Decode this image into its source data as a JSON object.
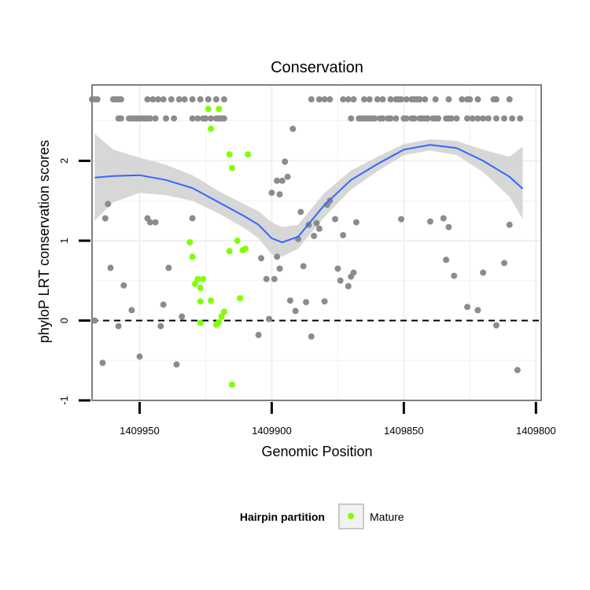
{
  "chart_data": {
    "type": "scatter",
    "title": "Conservation",
    "xlabel": "Genomic Position",
    "ylabel": "phyloP LRT conservation scores",
    "x_reversed": true,
    "xlim": [
      1409968,
      1409798
    ],
    "ylim": [
      -1,
      2.95
    ],
    "x_ticks": [
      1409950,
      1409900,
      1409850,
      1409800
    ],
    "x_tick_labels": [
      "1409950",
      "1409900",
      "1409850",
      "1409800"
    ],
    "y_ticks": [
      -1,
      0,
      1,
      2
    ],
    "y_tick_labels": [
      "-1",
      "0",
      "1",
      "2"
    ],
    "grid": true,
    "reference_line": {
      "y": 0,
      "style": "dashed"
    },
    "legend": {
      "title": "Hairpin partition",
      "position": "bottom",
      "entries": [
        "Mature"
      ]
    },
    "colors": {
      "other": "#8c8c8c",
      "mature": "#7fff00",
      "smooth": "#3366ff",
      "band": "#d3d3d3",
      "panel": "#ffffff",
      "grid": "#f0f0f0"
    },
    "series": [
      {
        "name": "",
        "color": "#8c8c8c",
        "points": [
          [
            1409967,
            0
          ],
          [
            1409964,
            -0.53
          ],
          [
            1409963,
            1.28
          ],
          [
            1409962,
            1.46
          ],
          [
            1409961,
            0.66
          ],
          [
            1409958,
            -0.07
          ],
          [
            1409956,
            0.44
          ],
          [
            1409953,
            0.13
          ],
          [
            1409950,
            -0.45
          ],
          [
            1409947,
            1.28
          ],
          [
            1409946,
            1.23
          ],
          [
            1409944,
            1.23
          ],
          [
            1409942,
            -0.07
          ],
          [
            1409941,
            0.2
          ],
          [
            1409939,
            0.66
          ],
          [
            1409936,
            -0.55
          ],
          [
            1409934,
            0.05
          ],
          [
            1409930,
            1.28
          ],
          [
            1409900,
            1.6
          ],
          [
            1409898,
            1.75
          ],
          [
            1409897,
            1.58
          ],
          [
            1409896,
            1.75
          ],
          [
            1409895,
            1.99
          ],
          [
            1409894,
            1.8
          ],
          [
            1409892,
            2.4
          ],
          [
            1409890,
            1.02
          ],
          [
            1409889,
            1.36
          ],
          [
            1409888,
            0.68
          ],
          [
            1409887,
            0.23
          ],
          [
            1409886,
            1.2
          ],
          [
            1409885,
            -0.2
          ],
          [
            1409884,
            1.06
          ],
          [
            1409883,
            1.22
          ],
          [
            1409882,
            1.15
          ],
          [
            1409880,
            0.24
          ],
          [
            1409879,
            1.45
          ],
          [
            1409878,
            1.5
          ],
          [
            1409876,
            1.27
          ],
          [
            1409875,
            0.65
          ],
          [
            1409874,
            0.5
          ],
          [
            1409873,
            1.07
          ],
          [
            1409871,
            0.43
          ],
          [
            1409870,
            0.55
          ],
          [
            1409869,
            0.6
          ],
          [
            1409868,
            1.23
          ],
          [
            1409905,
            -0.18
          ],
          [
            1409904,
            0.78
          ],
          [
            1409902,
            0.52
          ],
          [
            1409901,
            0.02
          ],
          [
            1409899,
            0.52
          ],
          [
            1409898,
            0.8
          ],
          [
            1409897,
            0.65
          ],
          [
            1409893,
            0.25
          ],
          [
            1409891,
            0.12
          ],
          [
            1409851,
            1.27
          ],
          [
            1409840,
            1.24
          ],
          [
            1409835,
            1.28
          ],
          [
            1409834,
            0.76
          ],
          [
            1409833,
            1.17
          ],
          [
            1409831,
            0.56
          ],
          [
            1409826,
            0.17
          ],
          [
            1409822,
            0.13
          ],
          [
            1409820,
            0.6
          ],
          [
            1409815,
            -0.06
          ],
          [
            1409812,
            0.72
          ],
          [
            1409810,
            1.2
          ],
          [
            1409807,
            -0.62
          ],
          [
            1409968,
            2.77
          ],
          [
            1409967,
            2.77
          ],
          [
            1409966,
            2.77
          ],
          [
            1409960,
            2.77
          ],
          [
            1409959,
            2.77
          ],
          [
            1409958,
            2.77
          ],
          [
            1409957,
            2.77
          ],
          [
            1409947,
            2.77
          ],
          [
            1409945,
            2.77
          ],
          [
            1409943,
            2.77
          ],
          [
            1409941,
            2.77
          ],
          [
            1409938,
            2.77
          ],
          [
            1409935,
            2.77
          ],
          [
            1409933,
            2.77
          ],
          [
            1409930,
            2.77
          ],
          [
            1409927,
            2.77
          ],
          [
            1409924,
            2.77
          ],
          [
            1409921,
            2.77
          ],
          [
            1409918,
            2.77
          ],
          [
            1409954,
            2.53
          ],
          [
            1409953,
            2.53
          ],
          [
            1409952,
            2.53
          ],
          [
            1409951,
            2.53
          ],
          [
            1409950,
            2.53
          ],
          [
            1409949,
            2.53
          ],
          [
            1409948,
            2.53
          ],
          [
            1409947,
            2.53
          ],
          [
            1409946,
            2.53
          ],
          [
            1409944,
            2.53
          ],
          [
            1409940,
            2.53
          ],
          [
            1409937,
            2.53
          ],
          [
            1409930,
            2.53
          ],
          [
            1409928,
            2.53
          ],
          [
            1409926,
            2.53
          ],
          [
            1409925,
            2.53
          ],
          [
            1409923,
            2.53
          ],
          [
            1409921,
            2.53
          ],
          [
            1409920,
            2.53
          ],
          [
            1409919,
            2.53
          ],
          [
            1409918,
            2.53
          ],
          [
            1409958,
            2.53
          ],
          [
            1409957,
            2.53
          ],
          [
            1409885,
            2.77
          ],
          [
            1409882,
            2.77
          ],
          [
            1409880,
            2.77
          ],
          [
            1409878,
            2.77
          ],
          [
            1409873,
            2.77
          ],
          [
            1409871,
            2.77
          ],
          [
            1409869,
            2.77
          ],
          [
            1409865,
            2.77
          ],
          [
            1409863,
            2.77
          ],
          [
            1409860,
            2.77
          ],
          [
            1409858,
            2.77
          ],
          [
            1409855,
            2.77
          ],
          [
            1409853,
            2.77
          ],
          [
            1409852,
            2.77
          ],
          [
            1409851,
            2.77
          ],
          [
            1409849,
            2.77
          ],
          [
            1409847,
            2.77
          ],
          [
            1409846,
            2.77
          ],
          [
            1409845,
            2.77
          ],
          [
            1409844,
            2.77
          ],
          [
            1409842,
            2.77
          ],
          [
            1409838,
            2.77
          ],
          [
            1409833,
            2.77
          ],
          [
            1409828,
            2.77
          ],
          [
            1409826,
            2.77
          ],
          [
            1409825,
            2.77
          ],
          [
            1409822,
            2.77
          ],
          [
            1409816,
            2.77
          ],
          [
            1409815,
            2.77
          ],
          [
            1409810,
            2.77
          ],
          [
            1409870,
            2.53
          ],
          [
            1409867,
            2.53
          ],
          [
            1409866,
            2.53
          ],
          [
            1409865,
            2.53
          ],
          [
            1409864,
            2.53
          ],
          [
            1409863,
            2.53
          ],
          [
            1409862,
            2.53
          ],
          [
            1409861,
            2.53
          ],
          [
            1409859,
            2.53
          ],
          [
            1409858,
            2.53
          ],
          [
            1409856,
            2.53
          ],
          [
            1409855,
            2.53
          ],
          [
            1409853,
            2.53
          ],
          [
            1409850,
            2.53
          ],
          [
            1409849,
            2.53
          ],
          [
            1409847,
            2.53
          ],
          [
            1409846,
            2.53
          ],
          [
            1409844,
            2.53
          ],
          [
            1409843,
            2.53
          ],
          [
            1409842,
            2.53
          ],
          [
            1409841,
            2.53
          ],
          [
            1409839,
            2.53
          ],
          [
            1409838,
            2.53
          ],
          [
            1409837,
            2.53
          ],
          [
            1409834,
            2.53
          ],
          [
            1409833,
            2.53
          ],
          [
            1409832,
            2.53
          ],
          [
            1409830,
            2.53
          ],
          [
            1409826,
            2.53
          ],
          [
            1409824,
            2.53
          ],
          [
            1409822,
            2.53
          ],
          [
            1409820,
            2.53
          ],
          [
            1409818,
            2.53
          ],
          [
            1409815,
            2.53
          ],
          [
            1409812,
            2.53
          ],
          [
            1409809,
            2.53
          ],
          [
            1409806,
            2.53
          ]
        ]
      },
      {
        "name": "Mature",
        "color": "#7fff00",
        "points": [
          [
            1409924,
            2.65
          ],
          [
            1409920,
            2.65
          ],
          [
            1409923,
            2.4
          ],
          [
            1409916,
            2.08
          ],
          [
            1409909,
            2.08
          ],
          [
            1409915,
            1.91
          ],
          [
            1409916,
            0.87
          ],
          [
            1409911,
            0.88
          ],
          [
            1409910,
            0.9
          ],
          [
            1409913,
            1.0
          ],
          [
            1409931,
            0.98
          ],
          [
            1409930,
            0.8
          ],
          [
            1409928,
            0.52
          ],
          [
            1409929,
            0.46
          ],
          [
            1409926,
            0.52
          ],
          [
            1409927,
            0.41
          ],
          [
            1409927,
            0.24
          ],
          [
            1409923,
            0.25
          ],
          [
            1409912,
            0.28
          ],
          [
            1409918,
            0.11
          ],
          [
            1409919,
            0.05
          ],
          [
            1409920,
            -0.02
          ],
          [
            1409927,
            -0.03
          ],
          [
            1409921,
            -0.05
          ],
          [
            1409915,
            -0.8
          ]
        ]
      }
    ],
    "smooth": {
      "x": [
        1409967,
        1409960,
        1409950,
        1409940,
        1409930,
        1409920,
        1409910,
        1409905,
        1409900,
        1409896,
        1409890,
        1409880,
        1409870,
        1409860,
        1409850,
        1409840,
        1409830,
        1409820,
        1409810,
        1409805
      ],
      "y": [
        1.79,
        1.81,
        1.82,
        1.76,
        1.66,
        1.48,
        1.3,
        1.2,
        1.03,
        0.98,
        1.05,
        1.45,
        1.76,
        1.96,
        2.14,
        2.2,
        2.16,
        2.0,
        1.8,
        1.65
      ],
      "lower": [
        1.25,
        1.48,
        1.6,
        1.57,
        1.5,
        1.34,
        1.15,
        1.03,
        0.83,
        0.8,
        0.9,
        1.3,
        1.64,
        1.87,
        2.07,
        2.13,
        2.07,
        1.86,
        1.55,
        1.27
      ],
      "upper": [
        2.34,
        2.14,
        2.04,
        1.95,
        1.82,
        1.62,
        1.45,
        1.37,
        1.23,
        1.17,
        1.2,
        1.6,
        1.88,
        2.05,
        2.21,
        2.27,
        2.25,
        2.14,
        2.05,
        2.18
      ]
    }
  }
}
